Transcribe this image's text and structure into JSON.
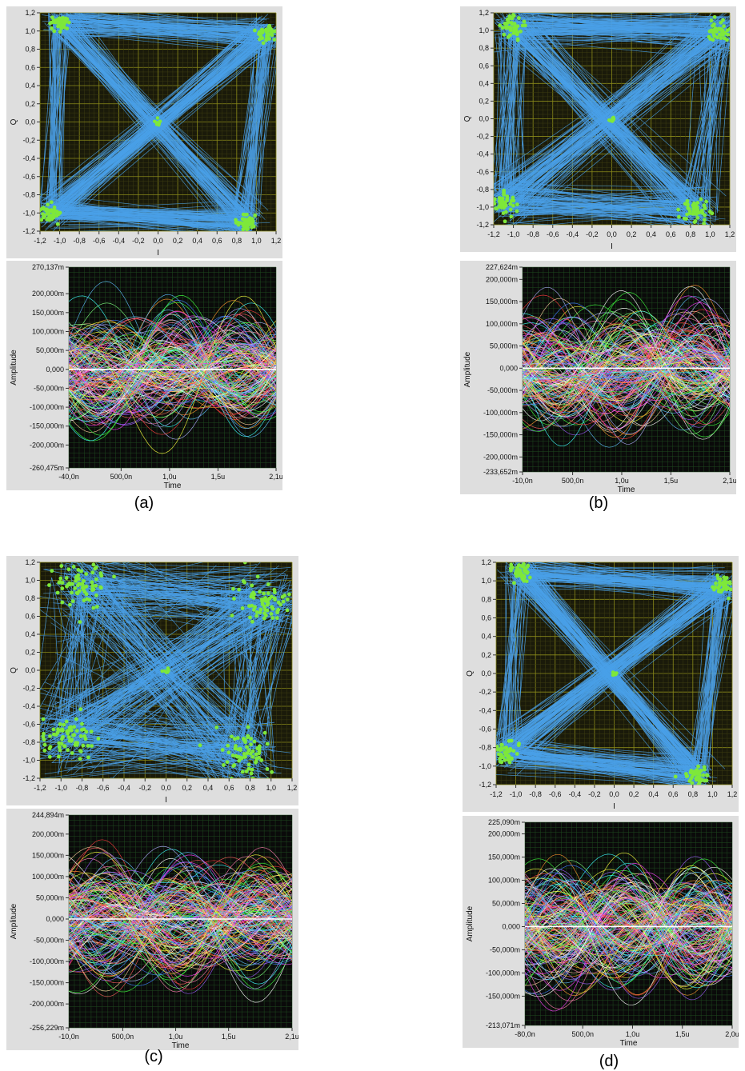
{
  "panels": [
    {
      "caption": "(a)",
      "constellation": {
        "type": "scatter",
        "xlabel": "I",
        "ylabel": "Q",
        "xlim": [
          -1.2,
          1.2
        ],
        "ylim": [
          -1.2,
          1.2
        ],
        "x_ticks": [
          "-1,2",
          "-1,0",
          "-0,8",
          "-0,6",
          "-0,4",
          "-0,2",
          "0,0",
          "0,2",
          "0,4",
          "0,6",
          "0,8",
          "1,0",
          "1,2"
        ],
        "y_ticks": [
          "1,2",
          "1,0",
          "0,8",
          "0,6",
          "0,4",
          "0,2",
          "0,0",
          "-0,2",
          "-0,4",
          "-0,6",
          "-0,8",
          "-1,0",
          "-1,2"
        ],
        "symbol_clusters": [
          {
            "x": -1.0,
            "y": 1.1,
            "spread": 0.06
          },
          {
            "x": 1.1,
            "y": 0.97,
            "spread": 0.06
          },
          {
            "x": -1.1,
            "y": -1.0,
            "spread": 0.06
          },
          {
            "x": 0.9,
            "y": -1.1,
            "spread": 0.06
          }
        ],
        "grid": true,
        "trace_color": "#4aa0e8",
        "point_color": "#7ee83a",
        "background": "#1a1a0a"
      },
      "eye": {
        "type": "line",
        "xlabel": "Time",
        "ylabel": "Amplitude",
        "xlim": [
          -0.04,
          2.1
        ],
        "ylim": [
          -0.260475,
          0.270137
        ],
        "x_ticks": [
          {
            "v": -0.04,
            "t": "-40,0n"
          },
          {
            "v": 0.5,
            "t": "500,0n"
          },
          {
            "v": 1.0,
            "t": "1,0u"
          },
          {
            "v": 1.5,
            "t": "1,5u"
          },
          {
            "v": 2.1,
            "t": "2,1u"
          }
        ],
        "y_ticks": [
          {
            "v": 0.270137,
            "t": "270,137m"
          },
          {
            "v": 0.2,
            "t": "200,000m"
          },
          {
            "v": 0.15,
            "t": "150,000m"
          },
          {
            "v": 0.1,
            "t": "100,000m"
          },
          {
            "v": 0.05,
            "t": "50,000m"
          },
          {
            "v": 0.0,
            "t": "0,000"
          },
          {
            "v": -0.05,
            "t": "-50,000m"
          },
          {
            "v": -0.1,
            "t": "-100,000m"
          },
          {
            "v": -0.15,
            "t": "-150,000m"
          },
          {
            "v": -0.2,
            "t": "-200,000m"
          },
          {
            "v": -0.260475,
            "t": "-260,475m"
          }
        ],
        "grid": true,
        "background": "#0a0a0a"
      }
    },
    {
      "caption": "(b)",
      "constellation": {
        "type": "scatter",
        "xlabel": "I",
        "ylabel": "Q",
        "xlim": [
          -1.2,
          1.2
        ],
        "ylim": [
          -1.2,
          1.2
        ],
        "x_ticks": [
          "-1,2",
          "-1,0",
          "-0,8",
          "-0,6",
          "-0,4",
          "-0,2",
          "0,0",
          "0,2",
          "0,4",
          "0,6",
          "0,8",
          "1,0",
          "1,2"
        ],
        "y_ticks": [
          "1,2",
          "1,0",
          "0,8",
          "0,6",
          "0,4",
          "0,2",
          "0,0",
          "-0,2",
          "-0,4",
          "-0,6",
          "-0,8",
          "-1,0",
          "-1,2"
        ],
        "symbol_clusters": [
          {
            "x": -1.0,
            "y": 1.05,
            "spread": 0.08
          },
          {
            "x": 1.1,
            "y": 1.0,
            "spread": 0.08
          },
          {
            "x": -1.1,
            "y": -0.95,
            "spread": 0.09
          },
          {
            "x": 0.85,
            "y": -1.05,
            "spread": 0.09
          }
        ],
        "grid": true,
        "trace_color": "#4aa0e8",
        "point_color": "#7ee83a",
        "background": "#1a1a0a"
      },
      "eye": {
        "type": "line",
        "xlabel": "Time",
        "ylabel": "Amplitude",
        "xlim": [
          -0.01,
          2.1
        ],
        "ylim": [
          -0.233652,
          0.227624
        ],
        "x_ticks": [
          {
            "v": -0.01,
            "t": "-10,0n"
          },
          {
            "v": 0.5,
            "t": "500,0n"
          },
          {
            "v": 1.0,
            "t": "1,0u"
          },
          {
            "v": 1.5,
            "t": "1,5u"
          },
          {
            "v": 2.1,
            "t": "2,1u"
          }
        ],
        "y_ticks": [
          {
            "v": 0.227624,
            "t": "227,624m"
          },
          {
            "v": 0.2,
            "t": "200,000m"
          },
          {
            "v": 0.15,
            "t": "150,000m"
          },
          {
            "v": 0.1,
            "t": "100,000m"
          },
          {
            "v": 0.05,
            "t": "50,000m"
          },
          {
            "v": 0.0,
            "t": "0,000"
          },
          {
            "v": -0.05,
            "t": "-50,000m"
          },
          {
            "v": -0.1,
            "t": "-100,000m"
          },
          {
            "v": -0.15,
            "t": "-150,000m"
          },
          {
            "v": -0.2,
            "t": "-200,000m"
          },
          {
            "v": -0.233652,
            "t": "-233,652m"
          }
        ],
        "grid": true,
        "background": "#0a0a0a"
      }
    },
    {
      "caption": "(c)",
      "constellation": {
        "type": "scatter",
        "xlabel": "I",
        "ylabel": "Q",
        "xlim": [
          -1.2,
          1.2
        ],
        "ylim": [
          -1.2,
          1.2
        ],
        "x_ticks": [
          "-1,2",
          "-1,0",
          "-0,8",
          "-0,6",
          "-0,4",
          "-0,2",
          "0,0",
          "0,2",
          "0,4",
          "0,6",
          "0,8",
          "1,0",
          "1,2"
        ],
        "y_ticks": [
          "1,2",
          "1,0",
          "0,8",
          "0,6",
          "0,4",
          "0,2",
          "0,0",
          "-0,2",
          "-0,4",
          "-0,6",
          "-0,8",
          "-1,0",
          "-1,2"
        ],
        "symbol_clusters": [
          {
            "x": -0.8,
            "y": 0.95,
            "spread": 0.16
          },
          {
            "x": 0.95,
            "y": 0.75,
            "spread": 0.16
          },
          {
            "x": -0.95,
            "y": -0.75,
            "spread": 0.16
          },
          {
            "x": 0.75,
            "y": -0.95,
            "spread": 0.16
          }
        ],
        "grid": true,
        "trace_color": "#4aa0e8",
        "point_color": "#7ee83a",
        "background": "#1a1a0a"
      },
      "eye": {
        "type": "line",
        "xlabel": "Time",
        "ylabel": "Amplitude",
        "xlim": [
          -0.01,
          2.1
        ],
        "ylim": [
          -0.256229,
          0.244894
        ],
        "x_ticks": [
          {
            "v": -0.01,
            "t": "-10,0n"
          },
          {
            "v": 0.5,
            "t": "500,0n"
          },
          {
            "v": 1.0,
            "t": "1,0u"
          },
          {
            "v": 1.5,
            "t": "1,5u"
          },
          {
            "v": 2.1,
            "t": "2,1u"
          }
        ],
        "y_ticks": [
          {
            "v": 0.244894,
            "t": "244,894m"
          },
          {
            "v": 0.2,
            "t": "200,000m"
          },
          {
            "v": 0.15,
            "t": "150,000m"
          },
          {
            "v": 0.1,
            "t": "100,000m"
          },
          {
            "v": 0.05,
            "t": "50,000m"
          },
          {
            "v": 0.0,
            "t": "0,000"
          },
          {
            "v": -0.05,
            "t": "-50,000m"
          },
          {
            "v": -0.1,
            "t": "-100,000m"
          },
          {
            "v": -0.15,
            "t": "-150,000m"
          },
          {
            "v": -0.2,
            "t": "-200,000m"
          },
          {
            "v": -0.256229,
            "t": "-256,229m"
          }
        ],
        "grid": true,
        "background": "#0a0a0a"
      }
    },
    {
      "caption": "(d)",
      "constellation": {
        "type": "scatter",
        "xlabel": "I",
        "ylabel": "Q",
        "xlim": [
          -1.2,
          1.2
        ],
        "ylim": [
          -1.2,
          1.2
        ],
        "x_ticks": [
          "-1,2",
          "-1,0",
          "-0,8",
          "-0,6",
          "-0,4",
          "-0,2",
          "0,0",
          "0,2",
          "0,4",
          "0,6",
          "0,8",
          "1,0",
          "1,2"
        ],
        "y_ticks": [
          "1,2",
          "1,0",
          "0,8",
          "0,6",
          "0,4",
          "0,2",
          "0,0",
          "-0,2",
          "-0,4",
          "-0,6",
          "-0,8",
          "-1,0",
          "-1,2"
        ],
        "symbol_clusters": [
          {
            "x": -0.95,
            "y": 1.1,
            "spread": 0.06
          },
          {
            "x": 1.1,
            "y": 0.95,
            "spread": 0.06
          },
          {
            "x": -1.1,
            "y": -0.85,
            "spread": 0.07
          },
          {
            "x": 0.85,
            "y": -1.1,
            "spread": 0.06
          }
        ],
        "grid": true,
        "trace_color": "#4aa0e8",
        "point_color": "#7ee83a",
        "background": "#1a1a0a"
      },
      "eye": {
        "type": "line",
        "xlabel": "Time",
        "ylabel": "Amplitude",
        "xlim": [
          -0.08,
          2.0
        ],
        "ylim": [
          -0.213071,
          0.22509
        ],
        "x_ticks": [
          {
            "v": -0.08,
            "t": "-80,0n"
          },
          {
            "v": 0.5,
            "t": "500,0n"
          },
          {
            "v": 1.0,
            "t": "1,0u"
          },
          {
            "v": 1.5,
            "t": "1,5u"
          },
          {
            "v": 2.0,
            "t": "2,0u"
          }
        ],
        "y_ticks": [
          {
            "v": 0.22509,
            "t": "225,090m"
          },
          {
            "v": 0.2,
            "t": "200,000m"
          },
          {
            "v": 0.15,
            "t": "150,000m"
          },
          {
            "v": 0.1,
            "t": "100,000m"
          },
          {
            "v": 0.05,
            "t": "50,000m"
          },
          {
            "v": 0.0,
            "t": "0,000"
          },
          {
            "v": -0.05,
            "t": "-50,000m"
          },
          {
            "v": -0.1,
            "t": "-100,000m"
          },
          {
            "v": -0.15,
            "t": "-150,000m"
          },
          {
            "v": -0.213071,
            "t": "-213,071m"
          }
        ],
        "grid": true,
        "background": "#0a0a0a"
      }
    }
  ]
}
